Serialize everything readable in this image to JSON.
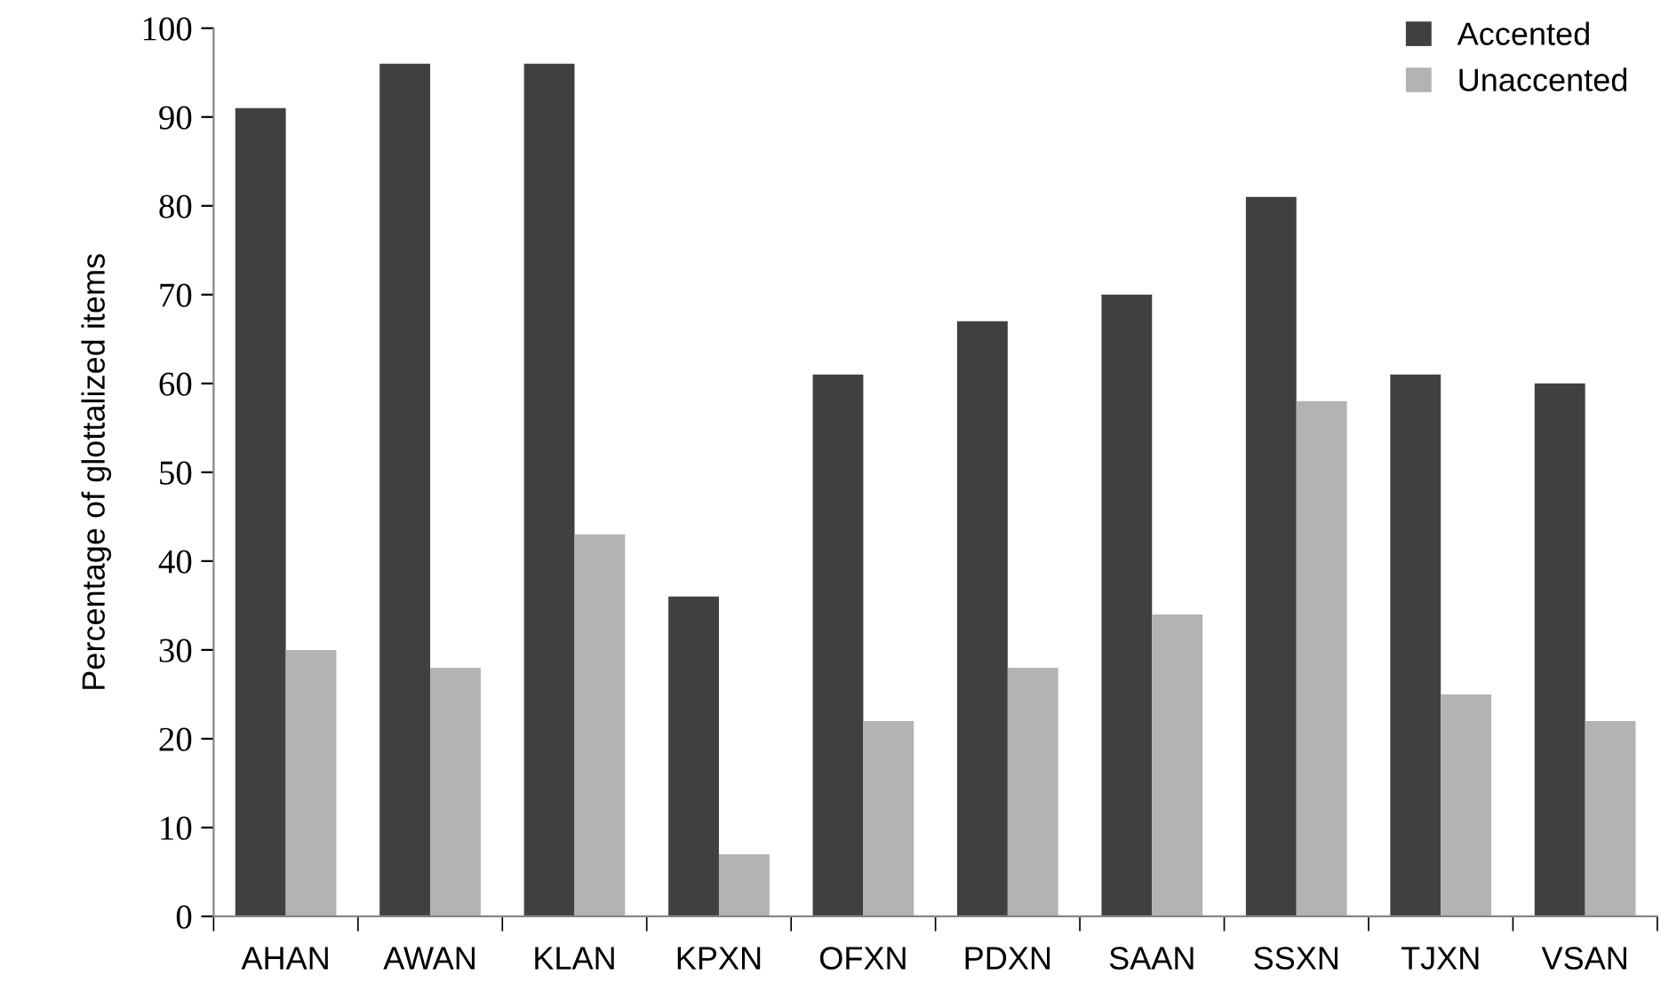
{
  "chart_data": {
    "type": "bar",
    "ylabel": "Percentage of glottalized items",
    "categories": [
      "AHAN",
      "AWAN",
      "KLAN",
      "KPXN",
      "OFXN",
      "PDXN",
      "SAAN",
      "SSXN",
      "TJXN",
      "VSAN"
    ],
    "series": [
      {
        "name": "Accented",
        "color": "#404040",
        "values": [
          91,
          96,
          96,
          36,
          61,
          67,
          70,
          81,
          61,
          60
        ]
      },
      {
        "name": "Unaccented",
        "color": "#b3b3b3",
        "values": [
          30,
          28,
          43,
          7,
          22,
          28,
          34,
          58,
          25,
          22
        ]
      }
    ],
    "ylim": [
      0,
      100
    ],
    "yticks": [
      0,
      10,
      20,
      30,
      40,
      50,
      60,
      70,
      80,
      90,
      100
    ],
    "grid": false,
    "legend": "top right"
  }
}
